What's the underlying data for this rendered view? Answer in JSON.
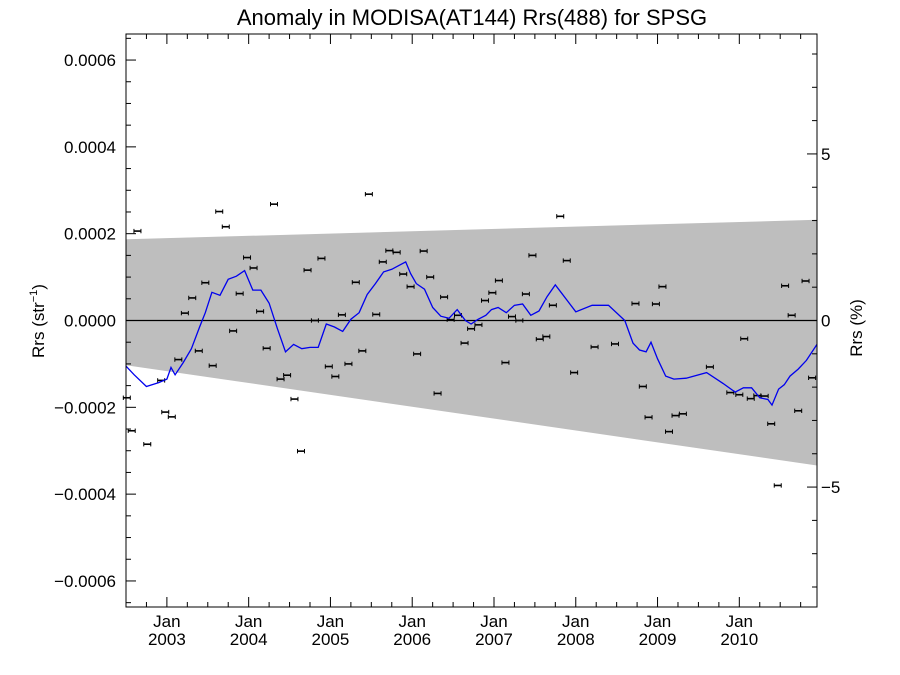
{
  "chart_data": {
    "type": "line",
    "title": "Anomaly in MODISA(AT144) Rrs(488) for SPSG",
    "ylabel": "Rrs (str",
    "ylabel_superscript": "−1",
    "ylabel_close": ")",
    "y2label": "Rrs (%)",
    "xlim": [
      2002.5,
      2010.95
    ],
    "ylim": [
      -0.00066,
      0.00066
    ],
    "y2lim": [
      -8.6,
      8.6
    ],
    "y_ticks": [
      {
        "value": 0.0006,
        "label": "0.0006"
      },
      {
        "value": 0.0004,
        "label": "0.0004"
      },
      {
        "value": 0.0002,
        "label": "0.0002"
      },
      {
        "value": 0.0,
        "label": "0.0000"
      },
      {
        "value": -0.0002,
        "label": "−0.0002"
      },
      {
        "value": -0.0004,
        "label": "−0.0004"
      },
      {
        "value": -0.0006,
        "label": "−0.0006"
      }
    ],
    "y2_ticks": [
      {
        "value": 5,
        "label": "5"
      },
      {
        "value": 0,
        "label": "0"
      },
      {
        "value": -5,
        "label": "−5"
      }
    ],
    "x_ticks": [
      {
        "value": 2003.0,
        "month": "Jan",
        "year": "2003"
      },
      {
        "value": 2004.0,
        "month": "Jan",
        "year": "2004"
      },
      {
        "value": 2005.0,
        "month": "Jan",
        "year": "2005"
      },
      {
        "value": 2006.0,
        "month": "Jan",
        "year": "2006"
      },
      {
        "value": 2007.0,
        "month": "Jan",
        "year": "2007"
      },
      {
        "value": 2008.0,
        "month": "Jan",
        "year": "2008"
      },
      {
        "value": 2009.0,
        "month": "Jan",
        "year": "2009"
      },
      {
        "value": 2010.0,
        "month": "Jan",
        "year": "2010"
      }
    ],
    "band": {
      "x": [
        2002.5,
        2010.95
      ],
      "upper": [
        0.000187,
        0.000232
      ],
      "lower": [
        -0.000103,
        -0.000334
      ]
    },
    "zero_line": 0.0,
    "colors": {
      "line": "#0000ee",
      "band": "#bebebe",
      "points": "#000000"
    },
    "series": [
      {
        "kind": "points",
        "x": [
          2002.51,
          2002.57,
          2002.64,
          2002.76,
          2002.93,
          2002.98,
          2003.06,
          2003.14,
          2003.22,
          2003.31,
          2003.39,
          2003.47,
          2003.56,
          2003.64,
          2003.72,
          2003.81,
          2003.89,
          2003.98,
          2004.06,
          2004.14,
          2004.22,
          2004.31,
          2004.39,
          2004.47,
          2004.56,
          2004.64,
          2004.72,
          2004.81,
          2004.89,
          2004.98,
          2005.06,
          2005.14,
          2005.22,
          2005.31,
          2005.39,
          2005.47,
          2005.56,
          2005.64,
          2005.72,
          2005.81,
          2005.89,
          2005.98,
          2006.06,
          2006.14,
          2006.22,
          2006.31,
          2006.39,
          2006.47,
          2006.56,
          2006.64,
          2006.72,
          2006.81,
          2006.89,
          2006.98,
          2007.06,
          2007.14,
          2007.22,
          2007.31,
          2007.39,
          2007.47,
          2007.56,
          2007.64,
          2007.72,
          2007.81,
          2007.89,
          2007.98,
          2008.23,
          2008.48,
          2008.73,
          2008.82,
          2008.89,
          2008.98,
          2009.06,
          2009.14,
          2009.22,
          2009.31,
          2009.64,
          2009.89,
          2010.0,
          2010.06,
          2010.14,
          2010.22,
          2010.31,
          2010.39,
          2010.47,
          2010.56,
          2010.64,
          2010.72,
          2010.81,
          2010.89
        ],
        "y": [
          -0.000178,
          -0.000254,
          0.000206,
          -0.000285,
          -0.000138,
          -0.000211,
          -0.000222,
          -9e-05,
          1.7e-05,
          5.2e-05,
          -7e-05,
          8.7e-05,
          -0.000104,
          0.000251,
          0.000216,
          -2.4e-05,
          6.2e-05,
          0.000145,
          0.000121,
          2.1e-05,
          -6.4e-05,
          0.000268,
          -0.000135,
          -0.000126,
          -0.000181,
          -0.000301,
          0.000116,
          0.0,
          0.000143,
          -0.000106,
          -0.000129,
          1.3e-05,
          -0.0001,
          8.8e-05,
          -7e-05,
          0.000291,
          1.4e-05,
          0.000135,
          0.000161,
          0.000157,
          0.000107,
          7.8e-05,
          -7.7e-05,
          0.00016,
          0.0001,
          -0.000168,
          5.4e-05,
          2e-06,
          1.2e-05,
          -5.2e-05,
          -1.9e-05,
          -1e-05,
          4.6e-05,
          6.4e-05,
          9.2e-05,
          -9.7e-05,
          9e-06,
          0.0,
          6.1e-05,
          0.00015,
          -4.3e-05,
          -3.7e-05,
          3.5e-05,
          0.00024,
          0.000138,
          -0.00012,
          -6.1e-05,
          -5.4e-05,
          3.9e-05,
          -0.000152,
          -0.000223,
          3.8e-05,
          7.8e-05,
          -0.000256,
          -0.000219,
          -0.000215,
          -0.000107,
          -0.000166,
          -0.000171,
          -4.2e-05,
          -0.00018,
          -0.000173,
          -0.000174,
          -0.000238,
          -0.00038,
          8e-05,
          1.2e-05,
          -0.000208,
          9.1e-05,
          -0.000132
        ]
      },
      {
        "kind": "line",
        "x": [
          2002.5,
          2002.6,
          2002.75,
          2002.9,
          2003.0,
          2003.05,
          2003.1,
          2003.2,
          2003.3,
          2003.4,
          2003.47,
          2003.55,
          2003.65,
          2003.75,
          2003.85,
          2003.95,
          2004.05,
          2004.15,
          2004.25,
          2004.35,
          2004.45,
          2004.55,
          2004.65,
          2004.75,
          2004.85,
          2004.95,
          2005.05,
          2005.15,
          2005.25,
          2005.35,
          2005.45,
          2005.55,
          2005.65,
          2005.75,
          2005.85,
          2005.92,
          2005.98,
          2006.05,
          2006.15,
          2006.25,
          2006.35,
          2006.45,
          2006.55,
          2006.65,
          2006.72,
          2006.8,
          2006.9,
          2006.97,
          2007.05,
          2007.15,
          2007.25,
          2007.35,
          2007.45,
          2007.55,
          2007.65,
          2007.75,
          2007.82,
          2007.9,
          2008.0,
          2008.2,
          2008.4,
          2008.6,
          2008.7,
          2008.78,
          2008.86,
          2008.92,
          2009.0,
          2009.1,
          2009.2,
          2009.35,
          2009.6,
          2009.8,
          2009.95,
          2010.05,
          2010.15,
          2010.25,
          2010.35,
          2010.4,
          2010.48,
          2010.55,
          2010.62,
          2010.72,
          2010.82,
          2010.95
        ],
        "y": [
          -0.000105,
          -0.000125,
          -0.000152,
          -0.000143,
          -0.000135,
          -0.000108,
          -0.000125,
          -9.7e-05,
          -6.5e-05,
          -1.5e-05,
          1.8e-05,
          6.5e-05,
          5.8e-05,
          9.5e-05,
          0.000102,
          0.000115,
          7e-05,
          7e-05,
          4e-05,
          -1.8e-05,
          -7.2e-05,
          -5.5e-05,
          -6.5e-05,
          -6.2e-05,
          -6.2e-05,
          -8e-06,
          -1.5e-05,
          -2.5e-05,
          3e-06,
          1.8e-05,
          6e-05,
          8.5e-05,
          0.000112,
          0.000118,
          0.000128,
          0.000135,
          0.000108,
          8.5e-05,
          7.2e-05,
          3e-05,
          1e-05,
          5e-06,
          2.5e-05,
          0.0,
          -8e-06,
          2e-06,
          1.2e-05,
          2.5e-05,
          3e-05,
          1.8e-05,
          3.5e-05,
          3.8e-05,
          1.2e-05,
          2.2e-05,
          5.5e-05,
          8.2e-05,
          6.5e-05,
          4.5e-05,
          2e-05,
          3.5e-05,
          3.5e-05,
          0.0,
          -5.2e-05,
          -6.8e-05,
          -7.2e-05,
          -5e-05,
          -8.8e-05,
          -0.000128,
          -0.000135,
          -0.000133,
          -0.00012,
          -0.000145,
          -0.000165,
          -0.000155,
          -0.000155,
          -0.000178,
          -0.000182,
          -0.000195,
          -0.000158,
          -0.000148,
          -0.000128,
          -0.000112,
          -9.2e-05,
          -5.5e-05
        ]
      }
    ]
  }
}
